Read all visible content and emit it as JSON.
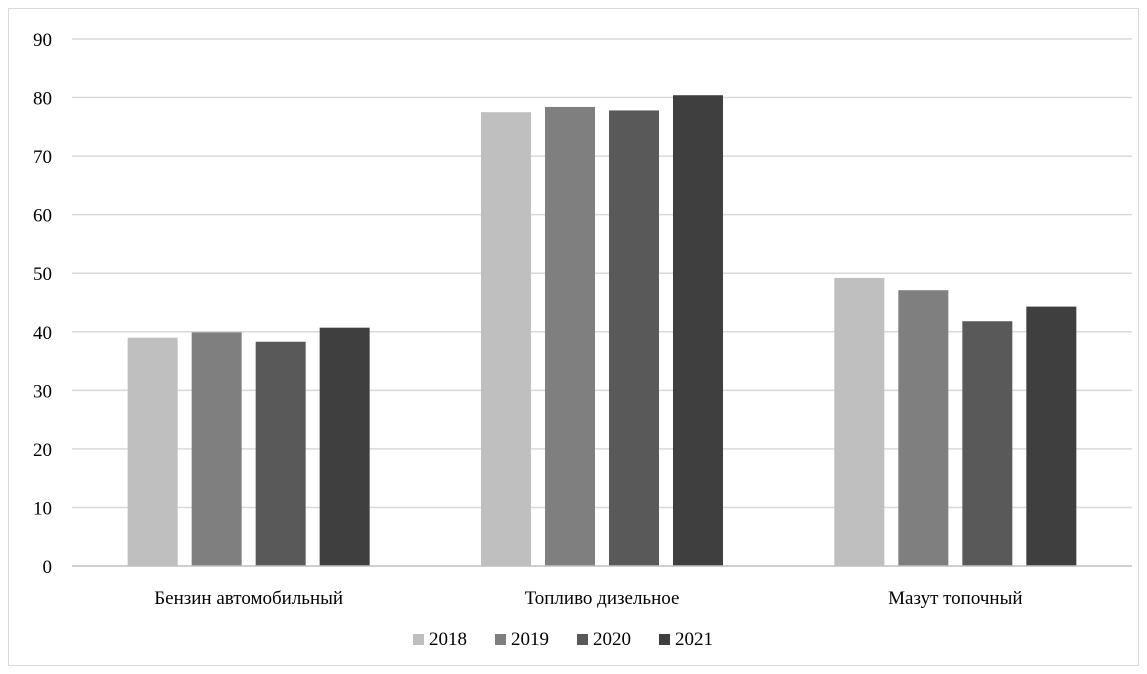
{
  "chart_data": {
    "type": "bar",
    "categories": [
      "Бензин автомобильный",
      "Топливо дизельное",
      "Мазут топочный"
    ],
    "series": [
      {
        "name": "2018",
        "color": "#bfbfbf",
        "values": [
          39.0,
          77.5,
          49.2
        ]
      },
      {
        "name": "2019",
        "color": "#7f7f7f",
        "values": [
          39.9,
          78.4,
          47.1
        ]
      },
      {
        "name": "2020",
        "color": "#595959",
        "values": [
          38.3,
          77.8,
          41.8
        ]
      },
      {
        "name": "2021",
        "color": "#3f3f3f",
        "values": [
          40.7,
          80.4,
          44.3
        ]
      }
    ],
    "title": "",
    "xlabel": "",
    "ylabel": "",
    "ylim": [
      0,
      90
    ],
    "yticks": [
      0,
      10,
      20,
      30,
      40,
      50,
      60,
      70,
      80,
      90
    ],
    "grid": true,
    "legend_position": "bottom"
  }
}
